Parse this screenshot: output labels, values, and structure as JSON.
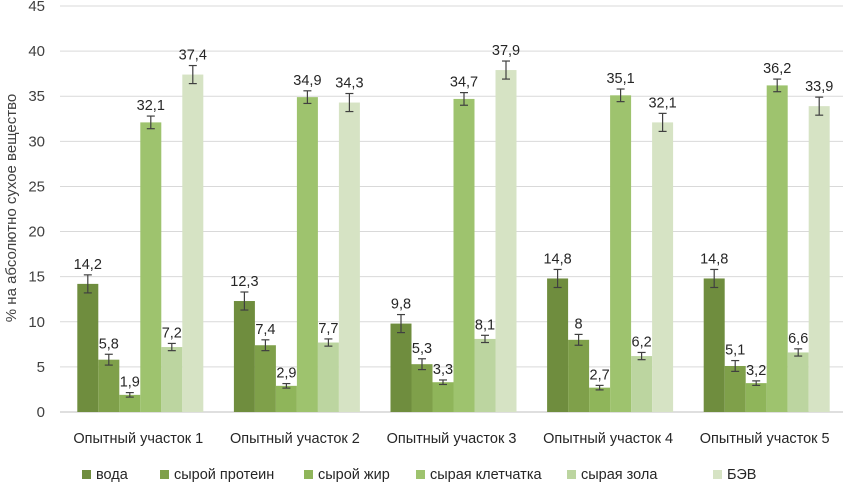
{
  "chart_data": {
    "type": "bar",
    "title": "",
    "xlabel": "",
    "ylabel": "% на абсолютно сухое вещество",
    "ylim": [
      0,
      45
    ],
    "yticks": [
      0,
      5,
      10,
      15,
      20,
      25,
      30,
      35,
      40,
      45
    ],
    "grid": true,
    "legend_position": "bottom",
    "error_bars": true,
    "categories": [
      "Опытный участок 1",
      "Опытный участок 2",
      "Опытный участок 3",
      "Опытный участок 4",
      "Опытный участок 5"
    ],
    "series": [
      {
        "name": "вода",
        "color": "#6f8d3e",
        "values": [
          14.2,
          12.3,
          9.8,
          14.8,
          14.8
        ],
        "labels": [
          "14,2",
          "12,3",
          "9,8",
          "14,8",
          "14,8"
        ],
        "errors": [
          1.0,
          1.0,
          1.0,
          1.0,
          1.0
        ]
      },
      {
        "name": "сырой протеин",
        "color": "#7fa04a",
        "values": [
          5.8,
          7.4,
          5.3,
          8.0,
          5.1
        ],
        "labels": [
          "5,8",
          "7,4",
          "5,3",
          "8",
          "5,1"
        ],
        "errors": [
          0.6,
          0.6,
          0.6,
          0.6,
          0.6
        ]
      },
      {
        "name": "сырой жир",
        "color": "#8fb55a",
        "values": [
          1.9,
          2.9,
          3.3,
          2.7,
          3.2
        ],
        "labels": [
          "1,9",
          "2,9",
          "3,3",
          "2,7",
          "3,2"
        ],
        "errors": [
          0.25,
          0.25,
          0.25,
          0.25,
          0.25
        ]
      },
      {
        "name": "сырая клетчатка",
        "color": "#9ec36e",
        "values": [
          32.1,
          34.9,
          34.7,
          35.1,
          36.2
        ],
        "labels": [
          "32,1",
          "34,9",
          "34,7",
          "35,1",
          "36,2"
        ],
        "errors": [
          0.7,
          0.7,
          0.7,
          0.7,
          0.7
        ]
      },
      {
        "name": "сырая зола",
        "color": "#bcd5a0",
        "values": [
          7.2,
          7.7,
          8.1,
          6.2,
          6.6
        ],
        "labels": [
          "7,2",
          "7,7",
          "8,1",
          "6,2",
          "6,6"
        ],
        "errors": [
          0.4,
          0.4,
          0.4,
          0.4,
          0.4
        ]
      },
      {
        "name": "БЭВ",
        "color": "#d6e3c4",
        "values": [
          37.4,
          34.3,
          37.9,
          32.1,
          33.9
        ],
        "labels": [
          "37,4",
          "34,3",
          "37,9",
          "32,1",
          "33,9"
        ],
        "errors": [
          1.0,
          1.0,
          1.0,
          1.0,
          1.0
        ]
      }
    ]
  }
}
